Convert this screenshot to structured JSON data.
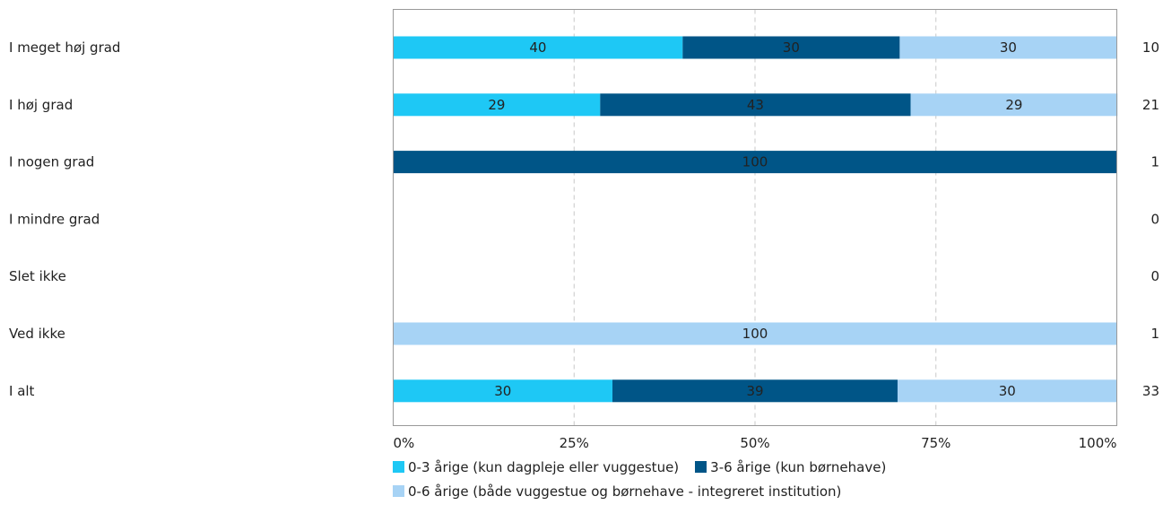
{
  "chart_data": {
    "type": "bar",
    "orientation": "horizontal",
    "stacked": true,
    "categories": [
      "I meget høj grad",
      "I høj grad",
      "I nogen grad",
      "I mindre grad",
      "Slet ikke",
      "Ved ikke",
      "I alt"
    ],
    "counts": [
      "10",
      "21",
      "1",
      "0",
      "0",
      "1",
      "33"
    ],
    "series": [
      {
        "name": "0-3 årige (kun dagpleje eller vuggestue)",
        "color": "#1ec8f5",
        "values": [
          40,
          28.6,
          0,
          0,
          0,
          0,
          30.3
        ],
        "labels": [
          "40",
          "29",
          "",
          "",
          "",
          "",
          "30"
        ]
      },
      {
        "name": "3-6 årige (kun børnehave)",
        "color": "#005587",
        "values": [
          30,
          42.9,
          100,
          0,
          0,
          0,
          39.4
        ],
        "labels": [
          "30",
          "43",
          "100",
          "",
          "",
          "",
          "39"
        ]
      },
      {
        "name": "0-6 årige (både vuggestue og børnehave - integreret institution)",
        "color": "#a7d3f5",
        "values": [
          30,
          28.6,
          0,
          0,
          0,
          100,
          30.3
        ],
        "labels": [
          "30",
          "29",
          "",
          "",
          "",
          "100",
          "30"
        ]
      }
    ],
    "xlim": [
      0,
      100
    ],
    "xticks": [
      "0%",
      "25%",
      "50%",
      "75%",
      "100%"
    ],
    "grid": true,
    "legend_position": "bottom"
  }
}
